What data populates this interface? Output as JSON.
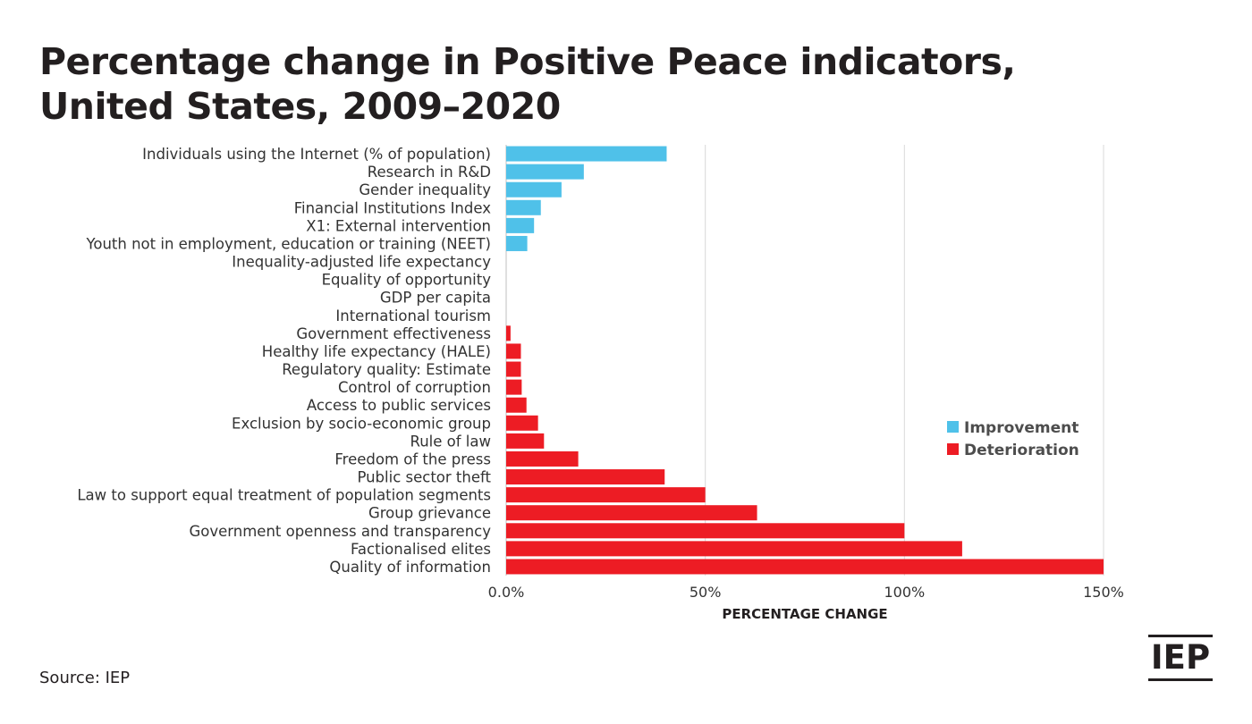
{
  "title_lines": [
    "Percentage change in Positive Peace indicators,",
    "United States, 2009–2020"
  ],
  "source": "Source: IEP",
  "logo_text": "IEP",
  "chart_data": {
    "type": "bar",
    "orientation": "horizontal",
    "categories": [
      "Individuals using the Internet (% of population)",
      "Research in R&D",
      "Gender inequality",
      "Financial Institutions Index",
      "X1: External intervention",
      "Youth not in employment, education or training (NEET)",
      "Inequality-adjusted life expectancy",
      "Equality of opportunity",
      "GDP per capita",
      "International tourism",
      "Government effectiveness",
      "Healthy life expectancy (HALE)",
      "Regulatory quality: Estimate",
      "Control of corruption",
      "Access to public services",
      "Exclusion by socio-economic group",
      "Rule of law",
      "Freedom of the press",
      "Public sector theft",
      "Law to support equal treatment of population segments",
      "Group grievance",
      "Government openness and transparency",
      "Factionalised elites",
      "Quality of information"
    ],
    "values": [
      40.3,
      19.5,
      13.9,
      8.7,
      7.0,
      5.3,
      0,
      0,
      0,
      0,
      1.1,
      3.7,
      3.7,
      3.9,
      5.1,
      8.0,
      9.5,
      18.1,
      39.8,
      50.0,
      63.0,
      100.0,
      114.5,
      150.0
    ],
    "series_flags": [
      "Improvement",
      "Improvement",
      "Improvement",
      "Improvement",
      "Improvement",
      "Improvement",
      "Improvement",
      "Improvement",
      "Improvement",
      "Improvement",
      "Deterioration",
      "Deterioration",
      "Deterioration",
      "Deterioration",
      "Deterioration",
      "Deterioration",
      "Deterioration",
      "Deterioration",
      "Deterioration",
      "Deterioration",
      "Deterioration",
      "Deterioration",
      "Deterioration",
      "Deterioration"
    ],
    "xlim": [
      0,
      150
    ],
    "x_ticks": [
      0,
      50,
      100,
      150
    ],
    "x_tick_labels": [
      "0.0%",
      "50%",
      "100%",
      "150%"
    ],
    "xlabel": "PERCENTAGE CHANGE",
    "ylabel": "",
    "grid": true,
    "legend_position": "right",
    "legend": [
      {
        "name": "Improvement",
        "color": "#4fc1e9"
      },
      {
        "name": "Deterioration",
        "color": "#ed1c24"
      }
    ]
  }
}
